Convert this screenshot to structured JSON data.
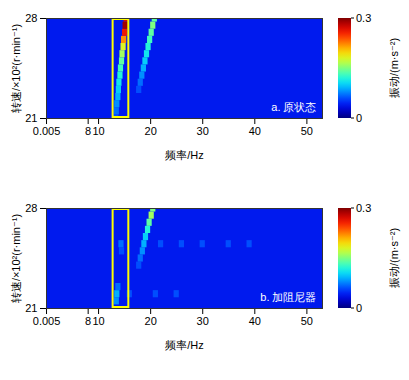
{
  "chart_data": [
    {
      "type": "heatmap",
      "title": "a. 原状态",
      "xlabel": "频率/Hz",
      "ylabel": "转速/×10²(r·min⁻¹)",
      "xlim": [
        0,
        53
      ],
      "xticks": [
        0.005,
        8,
        10,
        20,
        30,
        40,
        50
      ],
      "ylim": [
        21,
        28
      ],
      "yticks": [
        21,
        28
      ],
      "base_level": 0.04,
      "cells": {
        "x": [
          13.4,
          13.5,
          13.6,
          13.8,
          13.9,
          14.0,
          14.2,
          14.3,
          14.5,
          14.6,
          14.8,
          14.9,
          15.1,
          15.2,
          15.4,
          17.8,
          18.1,
          18.4,
          18.7,
          19.0,
          19.3,
          19.6,
          19.9,
          20.2,
          20.5,
          20.8
        ],
        "y": [
          21,
          21.5,
          22,
          22.5,
          23,
          23.5,
          24,
          24.5,
          25,
          25.5,
          26,
          26.5,
          27,
          27.5,
          28,
          23,
          23.5,
          24,
          24.5,
          25,
          25.5,
          26,
          26.5,
          27,
          27.5,
          28
        ],
        "values": [
          0.06,
          0.07,
          0.08,
          0.09,
          0.1,
          0.11,
          0.12,
          0.13,
          0.14,
          0.16,
          0.18,
          0.22,
          0.26,
          0.29,
          0.27,
          0.06,
          0.07,
          0.08,
          0.09,
          0.1,
          0.11,
          0.12,
          0.13,
          0.14,
          0.15,
          0.14
        ]
      },
      "highlight_box": {
        "x": [
          12.6,
          16.0
        ],
        "y": [
          21,
          28
        ],
        "color": "#ffff00"
      },
      "colorbar": {
        "range": [
          0,
          0.3
        ],
        "ticks": [
          0,
          0.3
        ],
        "label": "振动/(m·s⁻²)",
        "colors": [
          "#00007f",
          "#0000ff",
          "#007fff",
          "#00ffff",
          "#7fff7f",
          "#ffff00",
          "#ff7f00",
          "#ff0000",
          "#7f0000"
        ]
      }
    },
    {
      "type": "heatmap",
      "title": "b. 加阻尼器",
      "xlabel": "频率/Hz",
      "ylabel": "转速/×10²(r·min⁻¹)",
      "xlim": [
        0,
        53
      ],
      "xticks": [
        0.005,
        8,
        10,
        20,
        30,
        40,
        50
      ],
      "ylim": [
        21,
        28
      ],
      "yticks": [
        21,
        28
      ],
      "base_level": 0.04,
      "cells": {
        "x": [
          13.5,
          13.6,
          13.8,
          14.5,
          14.4,
          17.8,
          18.1,
          18.5,
          18.8,
          19.1,
          19.5,
          19.8,
          20.2,
          20.5,
          22,
          26,
          30,
          35,
          39,
          16,
          21,
          25
        ],
        "y": [
          21.5,
          22,
          22.5,
          25,
          25.5,
          24,
          24.5,
          25,
          25.5,
          26,
          26.5,
          27,
          27.5,
          28,
          25.5,
          25.5,
          25.5,
          25.5,
          25.5,
          22,
          22,
          22
        ],
        "values": [
          0.08,
          0.09,
          0.07,
          0.06,
          0.07,
          0.06,
          0.07,
          0.08,
          0.09,
          0.1,
          0.12,
          0.14,
          0.16,
          0.15,
          0.06,
          0.06,
          0.06,
          0.06,
          0.06,
          0.06,
          0.06,
          0.06
        ]
      },
      "highlight_box": {
        "x": [
          12.6,
          16.0
        ],
        "y": [
          21,
          28
        ],
        "color": "#ffff00"
      },
      "colorbar": {
        "range": [
          0,
          0.3
        ],
        "ticks": [
          0,
          0.3
        ],
        "label": "振动/(m·s⁻²)",
        "colors": [
          "#00007f",
          "#0000ff",
          "#007fff",
          "#00ffff",
          "#7fff7f",
          "#ffff00",
          "#ff7f00",
          "#ff0000",
          "#7f0000"
        ]
      }
    }
  ]
}
